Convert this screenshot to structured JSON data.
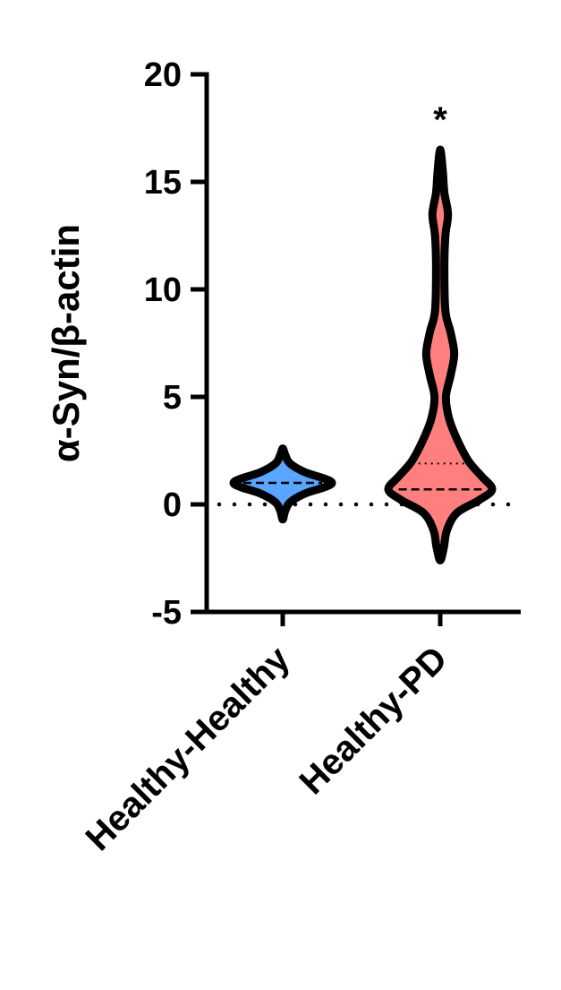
{
  "chart_data": {
    "type": "violin",
    "ylabel": "α-Syn/β-actin",
    "xlabel": "",
    "ylim": [
      -5,
      20
    ],
    "yticks": [
      -5,
      0,
      5,
      10,
      15,
      20
    ],
    "ytick_labels": [
      "-5",
      "0",
      "5",
      "10",
      "15",
      "20"
    ],
    "reference_line_y": 0,
    "categories": [
      "Healthy-Healthy",
      "Healthy-PD"
    ],
    "series": [
      {
        "category": "Healthy-Healthy",
        "color": "#5AA5FF",
        "median": 1.0,
        "quartiles": [
          1.0,
          1.0
        ],
        "profile": [
          [
            -0.7,
            0.0
          ],
          [
            -0.3,
            0.05
          ],
          [
            0.1,
            0.15
          ],
          [
            0.5,
            0.45
          ],
          [
            0.8,
            0.85
          ],
          [
            1.0,
            1.0
          ],
          [
            1.2,
            0.85
          ],
          [
            1.5,
            0.45
          ],
          [
            1.9,
            0.15
          ],
          [
            2.3,
            0.05
          ],
          [
            2.6,
            0.0
          ]
        ]
      },
      {
        "category": "Healthy-PD",
        "color": "#FF7F7F",
        "median": 0.7,
        "quartiles": [
          0.7,
          1.9
        ],
        "significance": "*",
        "profile": [
          [
            -2.6,
            0.0
          ],
          [
            -2.0,
            0.07
          ],
          [
            -1.2,
            0.13
          ],
          [
            -0.4,
            0.32
          ],
          [
            0.2,
            0.75
          ],
          [
            0.7,
            1.0
          ],
          [
            1.3,
            0.8
          ],
          [
            2.0,
            0.55
          ],
          [
            3.0,
            0.33
          ],
          [
            4.0,
            0.17
          ],
          [
            5.0,
            0.11
          ],
          [
            6.0,
            0.2
          ],
          [
            7.0,
            0.27
          ],
          [
            8.0,
            0.2
          ],
          [
            9.0,
            0.1
          ],
          [
            11.0,
            0.08
          ],
          [
            12.5,
            0.1
          ],
          [
            13.5,
            0.15
          ],
          [
            14.5,
            0.08
          ],
          [
            15.5,
            0.05
          ],
          [
            16.5,
            0.0
          ]
        ]
      }
    ]
  }
}
